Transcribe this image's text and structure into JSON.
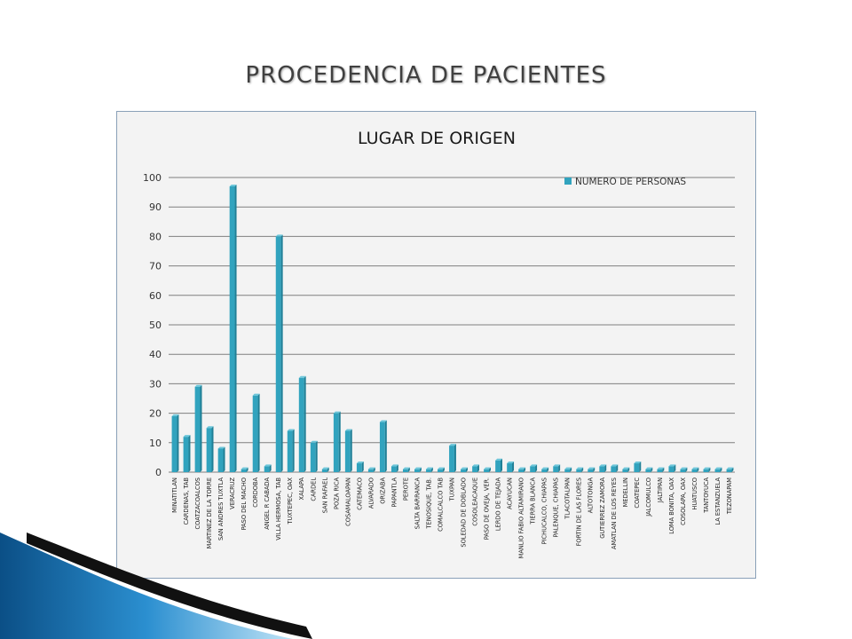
{
  "slide": {
    "title": "PROCEDENCIA DE PACIENTES"
  },
  "colors": {
    "bar": "#31a3be",
    "bar_dark": "#1f7f96",
    "bar_light": "#6cc6da",
    "grid": "#7f7f7f",
    "frame_border": "#8aa0b8",
    "swoosh_blue": "#0f6fa8",
    "swoosh_black": "#111111"
  },
  "chart_data": {
    "type": "bar",
    "title": "LUGAR DE ORIGEN",
    "xlabel": "",
    "ylabel": "",
    "ylim": [
      0,
      100
    ],
    "yticks": [
      0,
      10,
      20,
      30,
      40,
      50,
      60,
      70,
      80,
      90,
      100
    ],
    "grid": true,
    "legend_position": "top-right",
    "categories": [
      "MINATITLAN",
      "CARDENAS, TAB",
      "COATZACOALCOS",
      "MARTINEZ DE LA TORRE",
      "SAN ANDRES TUXTLA",
      "VERACRUZ",
      "PASO DEL MACHO",
      "CORDOBA",
      "ANGEL R CABADA",
      "VILLA HERMOSA, TAB",
      "TUXTEPEC, OAX",
      "XALAPA",
      "CARDEL",
      "SAN RAFAEL",
      "POZA RICA",
      "COSAMALOAPAN",
      "CATEMACO",
      "ALVARADO",
      "ORIZABA",
      "PAPANTLA",
      "PEROTE",
      "SALTA BARRANCA",
      "TENOSIQUE, TAB.",
      "COMALCALCO TAB",
      "TUXPAN",
      "SOLEDAD DE DOBLADO",
      "COSOLEACAQUE",
      "PASO DE OVEJA, VER.",
      "LERDO DE TEJADA",
      "ACAYUCAN",
      "MANLIO FABIO ALTAMIRANO",
      "TIERRA BLANCA",
      "PICHUCALCO, CHIAPAS",
      "PALENQUE, CHIAPAS",
      "TLACOTALPAN",
      "FORTIN DE LAS FLORES",
      "ALTOTONGA",
      "GUTIERREZ ZAMORA",
      "AMATLAN DE LOS REYES",
      "MEDELLIN",
      "COATEPEC",
      "JALCOMULCO",
      "JALTIPAN",
      "LOMA BONITA, OAX",
      "COSOLAPA, OAX",
      "HUATUSCO",
      "TANTOYUCA",
      "LA ESTANZUELA",
      "TEZONAPAM"
    ],
    "series": [
      {
        "name": "NUMERO DE PERSONAS",
        "values": [
          19,
          12,
          29,
          15,
          8,
          97,
          1,
          26,
          2,
          80,
          14,
          32,
          10,
          1,
          20,
          14,
          3,
          1,
          17,
          2,
          1,
          1,
          1,
          1,
          9,
          1,
          2,
          1,
          4,
          3,
          1,
          2,
          1,
          2,
          1,
          1,
          1,
          2,
          2,
          1,
          3,
          1,
          1,
          2,
          1,
          1,
          1,
          1,
          1
        ]
      }
    ]
  }
}
